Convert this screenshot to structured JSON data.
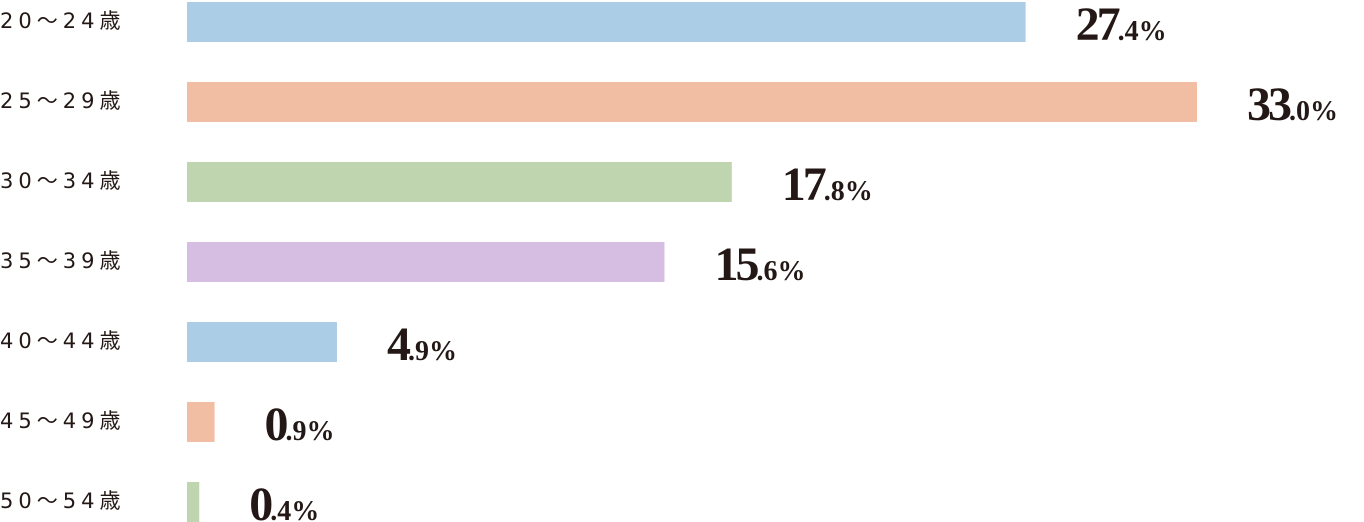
{
  "chart_data": {
    "type": "hbar",
    "categories": [
      "20～24歳",
      "25～29歳",
      "30～34歳",
      "35～39歳",
      "40～44歳",
      "45～49歳",
      "50～54歳"
    ],
    "values": [
      27.4,
      33.0,
      17.8,
      15.6,
      4.9,
      0.9,
      0.4
    ],
    "value_labels": [
      "27.4%",
      "33.0%",
      "17.8%",
      "15.6%",
      "4.9%",
      "0.9%",
      "0.4%"
    ],
    "colors": [
      "#abcde6",
      "#f1bda3",
      "#bed5b0",
      "#d6bee2",
      "#abcde6",
      "#f1bda3",
      "#bed5b0"
    ]
  }
}
